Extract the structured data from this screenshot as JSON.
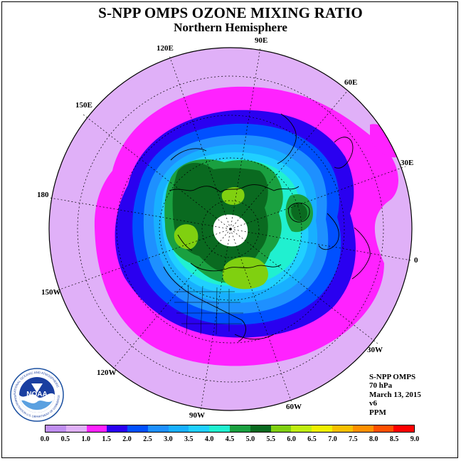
{
  "title": "S-NPP OMPS OZONE MIXING RATIO",
  "subtitle": "Northern Hemisphere",
  "longitude_labels": [
    "90E",
    "60E",
    "30E",
    "0",
    "30W",
    "60W",
    "90W",
    "120W",
    "150W",
    "180",
    "150E",
    "120E"
  ],
  "info": {
    "instrument": "S-NPP OMPS",
    "level": "70 hPa",
    "date": "March 13, 2015",
    "version": "v6",
    "units": "PPM"
  },
  "logo": {
    "name": "NOAA",
    "ring_text_top": "NATIONAL OCEANIC AND ATMOSPHERIC",
    "ring_text_bottom": "ADMINISTRATION U.S. DEPARTMENT OF COMMERCE"
  },
  "colorbar": {
    "labels": [
      "0.0",
      "0.5",
      "1.0",
      "1.5",
      "2.0",
      "2.5",
      "3.0",
      "3.5",
      "4.0",
      "4.5",
      "5.0",
      "5.5",
      "6.0",
      "6.5",
      "7.0",
      "7.5",
      "8.0",
      "8.5",
      "9.0"
    ],
    "colors": [
      "#c08ef0",
      "#e0b0f8",
      "#ff22ff",
      "#2a00f0",
      "#0050ff",
      "#1e90ff",
      "#18b0ff",
      "#20d0ff",
      "#20f0d0",
      "#1aa040",
      "#0a6a20",
      "#80d010",
      "#c0ee10",
      "#f0f000",
      "#f8c000",
      "#ff9000",
      "#ff5000",
      "#ff0000",
      "#805030"
    ]
  },
  "map_data": {
    "projection": "north-polar-stereographic",
    "variable": "ozone mixing ratio",
    "units": "PPM",
    "pressure_level": "70 hPa",
    "contour_levels": [
      0.0,
      0.5,
      1.0,
      1.5,
      2.0,
      2.5,
      3.0,
      3.5,
      4.0,
      4.5,
      5.0,
      5.5,
      6.0,
      6.5,
      7.0,
      7.5,
      8.0,
      8.5,
      9.0
    ],
    "features": [
      "polar night missing-data hole (white)",
      "ozone maxima > 5.0 ppm over Canada, Siberia and Greenland",
      "outer band 0.5-1.0 ppm near edge"
    ]
  }
}
